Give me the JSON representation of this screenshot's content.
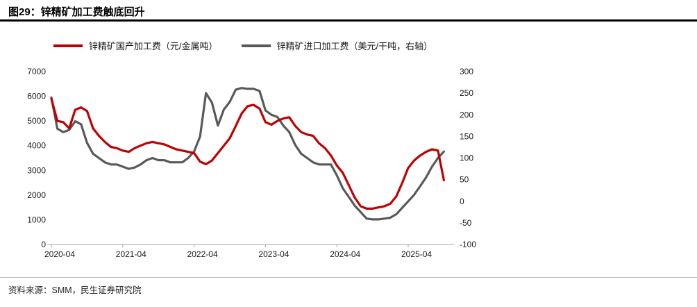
{
  "page": {
    "title": "图29：锌精矿加工费触底回升",
    "source": "资料来源：SMM，民生证券研究院"
  },
  "legend": [
    {
      "label": "锌精矿国产加工费（元/金属吨）",
      "color": "#c00000"
    },
    {
      "label": "锌精矿进口加工费（美元/干吨，右轴）",
      "color": "#595959"
    }
  ],
  "chart_data": {
    "type": "line",
    "title": "锌精矿加工费触底回升",
    "legend_position": "top",
    "grid": false,
    "x_tick_labels": [
      "2020-04",
      "2021-04",
      "2022-04",
      "2023-04",
      "2024-04",
      "2025-04"
    ],
    "left_axis": {
      "min": 0,
      "max": 7000,
      "step": 1000,
      "label": "元/金属吨"
    },
    "right_axis": {
      "min": -100,
      "max": 300,
      "step": 50,
      "label": "美元/干吨"
    },
    "x": [
      "2020-04",
      "2020-05",
      "2020-06",
      "2020-07",
      "2020-08",
      "2020-09",
      "2020-10",
      "2020-11",
      "2020-12",
      "2021-01",
      "2021-02",
      "2021-03",
      "2021-04",
      "2021-05",
      "2021-06",
      "2021-07",
      "2021-08",
      "2021-09",
      "2021-10",
      "2021-11",
      "2021-12",
      "2022-01",
      "2022-02",
      "2022-03",
      "2022-04",
      "2022-05",
      "2022-06",
      "2022-07",
      "2022-08",
      "2022-09",
      "2022-10",
      "2022-11",
      "2022-12",
      "2023-01",
      "2023-02",
      "2023-03",
      "2023-04",
      "2023-05",
      "2023-06",
      "2023-07",
      "2023-08",
      "2023-09",
      "2023-10",
      "2023-11",
      "2023-12",
      "2024-01",
      "2024-02",
      "2024-03",
      "2024-04",
      "2024-05",
      "2024-06",
      "2024-07",
      "2024-08",
      "2024-09",
      "2024-10",
      "2024-11",
      "2024-12",
      "2025-01",
      "2025-02",
      "2025-03",
      "2025-04",
      "2025-05",
      "2025-06",
      "2025-07",
      "2025-08",
      "2025-09",
      "2025-10"
    ],
    "series": [
      {
        "name": "锌精矿国产加工费（元/金属吨）",
        "axis": "left",
        "color": "#c00000",
        "values": [
          5900,
          5000,
          4950,
          4700,
          5450,
          5550,
          5400,
          4700,
          4400,
          4150,
          3950,
          3900,
          3800,
          3750,
          3900,
          4000,
          4100,
          4150,
          4100,
          4050,
          3950,
          3850,
          3800,
          3750,
          3700,
          3350,
          3250,
          3400,
          3700,
          4000,
          4300,
          4800,
          5300,
          5600,
          5650,
          5500,
          4950,
          4850,
          5000,
          5100,
          5150,
          4800,
          4550,
          4450,
          4400,
          4100,
          3900,
          3600,
          3200,
          2900,
          2400,
          1900,
          1550,
          1450,
          1450,
          1500,
          1550,
          1650,
          1950,
          2500,
          3100,
          3400,
          3600,
          3750,
          3850,
          3800,
          2600
        ]
      },
      {
        "name": "锌精矿进口加工费（美元/干吨，右轴）",
        "axis": "right",
        "color": "#595959",
        "values": [
          240,
          168,
          160,
          165,
          185,
          178,
          135,
          110,
          100,
          90,
          85,
          85,
          80,
          75,
          78,
          85,
          95,
          100,
          95,
          95,
          90,
          90,
          90,
          100,
          115,
          150,
          250,
          228,
          175,
          212,
          230,
          258,
          262,
          260,
          260,
          255,
          210,
          200,
          195,
          175,
          160,
          130,
          110,
          100,
          90,
          85,
          85,
          85,
          60,
          30,
          10,
          -10,
          -25,
          -40,
          -42,
          -42,
          -40,
          -38,
          -30,
          -15,
          0,
          15,
          35,
          55,
          80,
          100,
          115
        ]
      }
    ]
  }
}
